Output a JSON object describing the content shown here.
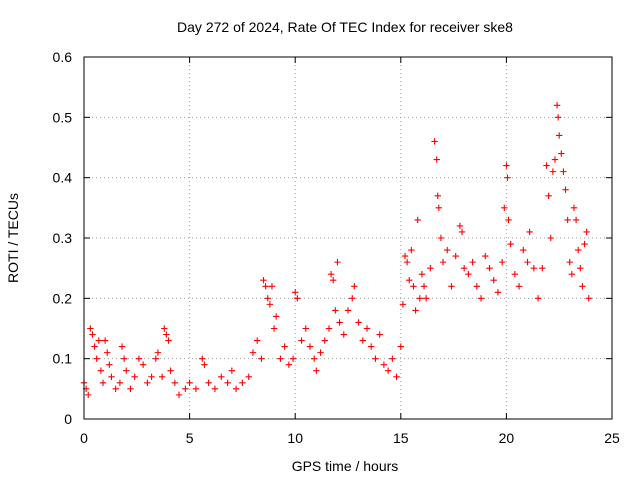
{
  "chart_data": {
    "type": "scatter",
    "title": "Day 272 of 2024, Rate Of TEC Index for receiver ske8",
    "xlabel": "GPS time / hours",
    "ylabel": "ROTI / TECUs",
    "xlim": [
      0,
      25
    ],
    "ylim": [
      0,
      0.6
    ],
    "x_ticks": [
      0,
      5,
      10,
      15,
      20,
      25
    ],
    "y_ticks": [
      0,
      0.1,
      0.2,
      0.3,
      0.4,
      0.5,
      0.6
    ],
    "x_tick_labels": [
      "0",
      "5",
      "10",
      "15",
      "20",
      "25"
    ],
    "y_tick_labels": [
      "0",
      "0.1",
      "0.2",
      "0.3",
      "0.4",
      "0.5",
      "0.6"
    ],
    "grid": true,
    "marker": "+",
    "color": "#ff0000",
    "series": [
      {
        "name": "ROTI",
        "points": [
          [
            0.0,
            0.06
          ],
          [
            0.1,
            0.05
          ],
          [
            0.2,
            0.04
          ],
          [
            0.3,
            0.15
          ],
          [
            0.4,
            0.14
          ],
          [
            0.5,
            0.12
          ],
          [
            0.6,
            0.1
          ],
          [
            0.7,
            0.13
          ],
          [
            0.8,
            0.08
          ],
          [
            0.9,
            0.06
          ],
          [
            1.0,
            0.13
          ],
          [
            1.1,
            0.11
          ],
          [
            1.2,
            0.09
          ],
          [
            1.3,
            0.07
          ],
          [
            1.5,
            0.05
          ],
          [
            1.7,
            0.06
          ],
          [
            1.8,
            0.12
          ],
          [
            1.9,
            0.1
          ],
          [
            2.0,
            0.08
          ],
          [
            2.2,
            0.05
          ],
          [
            2.4,
            0.07
          ],
          [
            2.6,
            0.1
          ],
          [
            2.8,
            0.09
          ],
          [
            3.0,
            0.06
          ],
          [
            3.2,
            0.07
          ],
          [
            3.4,
            0.1
          ],
          [
            3.5,
            0.11
          ],
          [
            3.7,
            0.07
          ],
          [
            3.8,
            0.15
          ],
          [
            3.9,
            0.14
          ],
          [
            4.0,
            0.13
          ],
          [
            4.1,
            0.08
          ],
          [
            4.3,
            0.06
          ],
          [
            4.5,
            0.04
          ],
          [
            4.8,
            0.05
          ],
          [
            5.0,
            0.06
          ],
          [
            5.3,
            0.05
          ],
          [
            5.6,
            0.1
          ],
          [
            5.7,
            0.09
          ],
          [
            5.9,
            0.06
          ],
          [
            6.2,
            0.05
          ],
          [
            6.5,
            0.07
          ],
          [
            6.8,
            0.06
          ],
          [
            7.0,
            0.08
          ],
          [
            7.2,
            0.05
          ],
          [
            7.5,
            0.06
          ],
          [
            7.8,
            0.07
          ],
          [
            8.0,
            0.11
          ],
          [
            8.2,
            0.13
          ],
          [
            8.4,
            0.1
          ],
          [
            8.5,
            0.23
          ],
          [
            8.6,
            0.22
          ],
          [
            8.7,
            0.2
          ],
          [
            8.8,
            0.19
          ],
          [
            8.9,
            0.22
          ],
          [
            9.0,
            0.15
          ],
          [
            9.1,
            0.17
          ],
          [
            9.3,
            0.1
          ],
          [
            9.5,
            0.12
          ],
          [
            9.7,
            0.09
          ],
          [
            9.9,
            0.1
          ],
          [
            10.0,
            0.21
          ],
          [
            10.1,
            0.2
          ],
          [
            10.3,
            0.13
          ],
          [
            10.5,
            0.15
          ],
          [
            10.7,
            0.12
          ],
          [
            10.9,
            0.1
          ],
          [
            11.0,
            0.08
          ],
          [
            11.2,
            0.11
          ],
          [
            11.4,
            0.13
          ],
          [
            11.6,
            0.15
          ],
          [
            11.7,
            0.24
          ],
          [
            11.8,
            0.23
          ],
          [
            11.9,
            0.18
          ],
          [
            12.0,
            0.26
          ],
          [
            12.1,
            0.16
          ],
          [
            12.3,
            0.14
          ],
          [
            12.5,
            0.18
          ],
          [
            12.7,
            0.2
          ],
          [
            12.8,
            0.22
          ],
          [
            13.0,
            0.16
          ],
          [
            13.2,
            0.13
          ],
          [
            13.4,
            0.15
          ],
          [
            13.6,
            0.12
          ],
          [
            13.8,
            0.1
          ],
          [
            14.0,
            0.14
          ],
          [
            14.2,
            0.09
          ],
          [
            14.4,
            0.08
          ],
          [
            14.6,
            0.1
          ],
          [
            14.8,
            0.07
          ],
          [
            15.0,
            0.12
          ],
          [
            15.1,
            0.19
          ],
          [
            15.2,
            0.27
          ],
          [
            15.3,
            0.26
          ],
          [
            15.4,
            0.23
          ],
          [
            15.5,
            0.28
          ],
          [
            15.6,
            0.22
          ],
          [
            15.7,
            0.18
          ],
          [
            15.8,
            0.33
          ],
          [
            15.9,
            0.2
          ],
          [
            16.0,
            0.24
          ],
          [
            16.1,
            0.22
          ],
          [
            16.2,
            0.2
          ],
          [
            16.4,
            0.25
          ],
          [
            16.6,
            0.46
          ],
          [
            16.7,
            0.43
          ],
          [
            16.75,
            0.37
          ],
          [
            16.8,
            0.35
          ],
          [
            16.9,
            0.3
          ],
          [
            17.0,
            0.26
          ],
          [
            17.2,
            0.28
          ],
          [
            17.4,
            0.22
          ],
          [
            17.6,
            0.27
          ],
          [
            17.8,
            0.32
          ],
          [
            17.9,
            0.31
          ],
          [
            18.0,
            0.25
          ],
          [
            18.2,
            0.24
          ],
          [
            18.4,
            0.26
          ],
          [
            18.6,
            0.22
          ],
          [
            18.8,
            0.2
          ],
          [
            19.0,
            0.27
          ],
          [
            19.2,
            0.25
          ],
          [
            19.4,
            0.23
          ],
          [
            19.6,
            0.21
          ],
          [
            19.8,
            0.26
          ],
          [
            19.9,
            0.35
          ],
          [
            20.0,
            0.42
          ],
          [
            20.05,
            0.4
          ],
          [
            20.1,
            0.33
          ],
          [
            20.2,
            0.29
          ],
          [
            20.4,
            0.24
          ],
          [
            20.6,
            0.22
          ],
          [
            20.8,
            0.28
          ],
          [
            21.0,
            0.26
          ],
          [
            21.1,
            0.31
          ],
          [
            21.3,
            0.25
          ],
          [
            21.5,
            0.2
          ],
          [
            21.7,
            0.25
          ],
          [
            21.9,
            0.42
          ],
          [
            22.0,
            0.37
          ],
          [
            22.1,
            0.3
          ],
          [
            22.2,
            0.41
          ],
          [
            22.3,
            0.43
          ],
          [
            22.4,
            0.52
          ],
          [
            22.45,
            0.5
          ],
          [
            22.5,
            0.47
          ],
          [
            22.6,
            0.44
          ],
          [
            22.7,
            0.41
          ],
          [
            22.8,
            0.38
          ],
          [
            22.9,
            0.33
          ],
          [
            23.0,
            0.26
          ],
          [
            23.1,
            0.24
          ],
          [
            23.2,
            0.35
          ],
          [
            23.3,
            0.33
          ],
          [
            23.4,
            0.28
          ],
          [
            23.5,
            0.25
          ],
          [
            23.6,
            0.22
          ],
          [
            23.7,
            0.29
          ],
          [
            23.8,
            0.31
          ],
          [
            23.9,
            0.2
          ]
        ]
      }
    ]
  }
}
